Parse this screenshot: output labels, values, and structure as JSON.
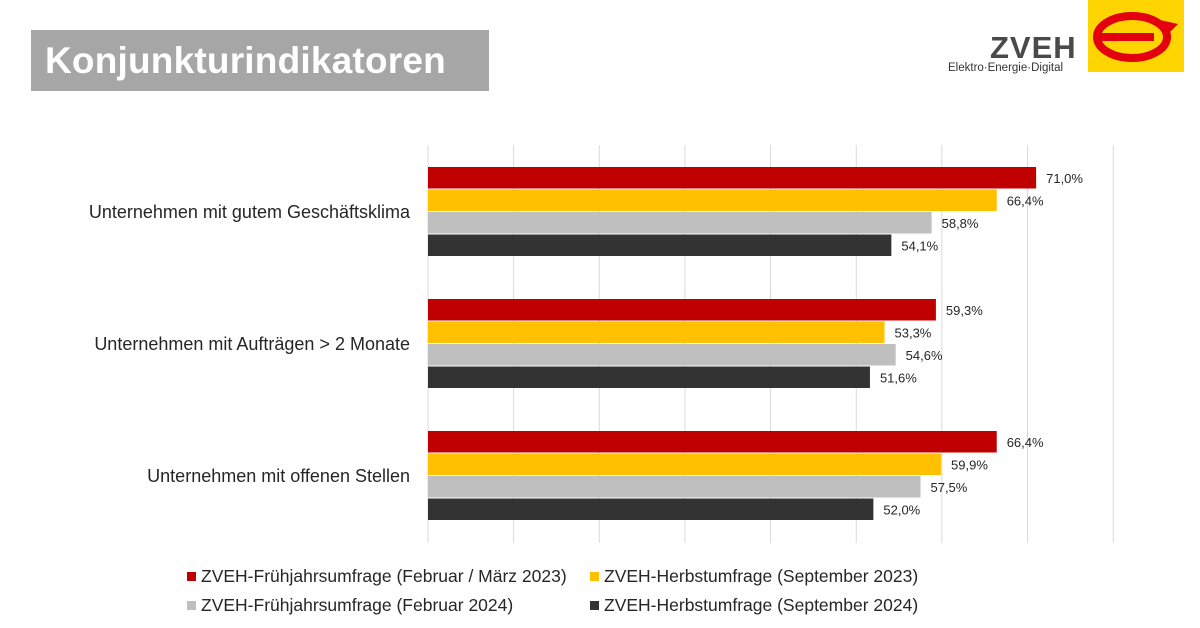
{
  "header": {
    "title": "Konjunkturindikatoren",
    "logo_name": "ZVEH",
    "logo_tagline": "Elektro·Energie·Digital",
    "logo_icon": "zveh-e-logo-icon"
  },
  "colors": {
    "title_box": "#a6a6a6",
    "logo_yellow": "#ffd500",
    "logo_red": "#e3000f"
  },
  "chart_data": {
    "type": "bar",
    "orientation": "horizontal",
    "categories": [
      "Unternehmen mit gutem Geschäftsklima",
      "Unternehmen mit Aufträgen > 2 Monate",
      "Unternehmen mit offenen Stellen"
    ],
    "series": [
      {
        "name": "ZVEH-Frühjahrsumfrage (Februar / März 2023)",
        "color": "#c00000",
        "values": [
          71.0,
          59.3,
          66.4
        ],
        "labels": [
          "71,0%",
          "59,3%",
          "66,4%"
        ]
      },
      {
        "name": "ZVEH-Herbstumfrage (September 2023)",
        "color": "#ffc000",
        "values": [
          66.4,
          53.3,
          59.9
        ],
        "labels": [
          "66,4%",
          "53,3%",
          "59,9%"
        ]
      },
      {
        "name": "ZVEH-Frühjahrsumfrage (Februar 2024)",
        "color": "#bfbfbf",
        "values": [
          58.8,
          54.6,
          57.5
        ],
        "labels": [
          "58,8%",
          "54,6%",
          "57,5%"
        ]
      },
      {
        "name": "ZVEH-Herbstumfrage (September 2024)",
        "color": "#333333",
        "values": [
          54.1,
          51.6,
          52.0
        ],
        "labels": [
          "54,1%",
          "51,6%",
          "52,0%"
        ]
      }
    ],
    "xlim": [
      0,
      80
    ],
    "grid": true,
    "legend_position": "bottom",
    "axis_labels_shown": false
  }
}
